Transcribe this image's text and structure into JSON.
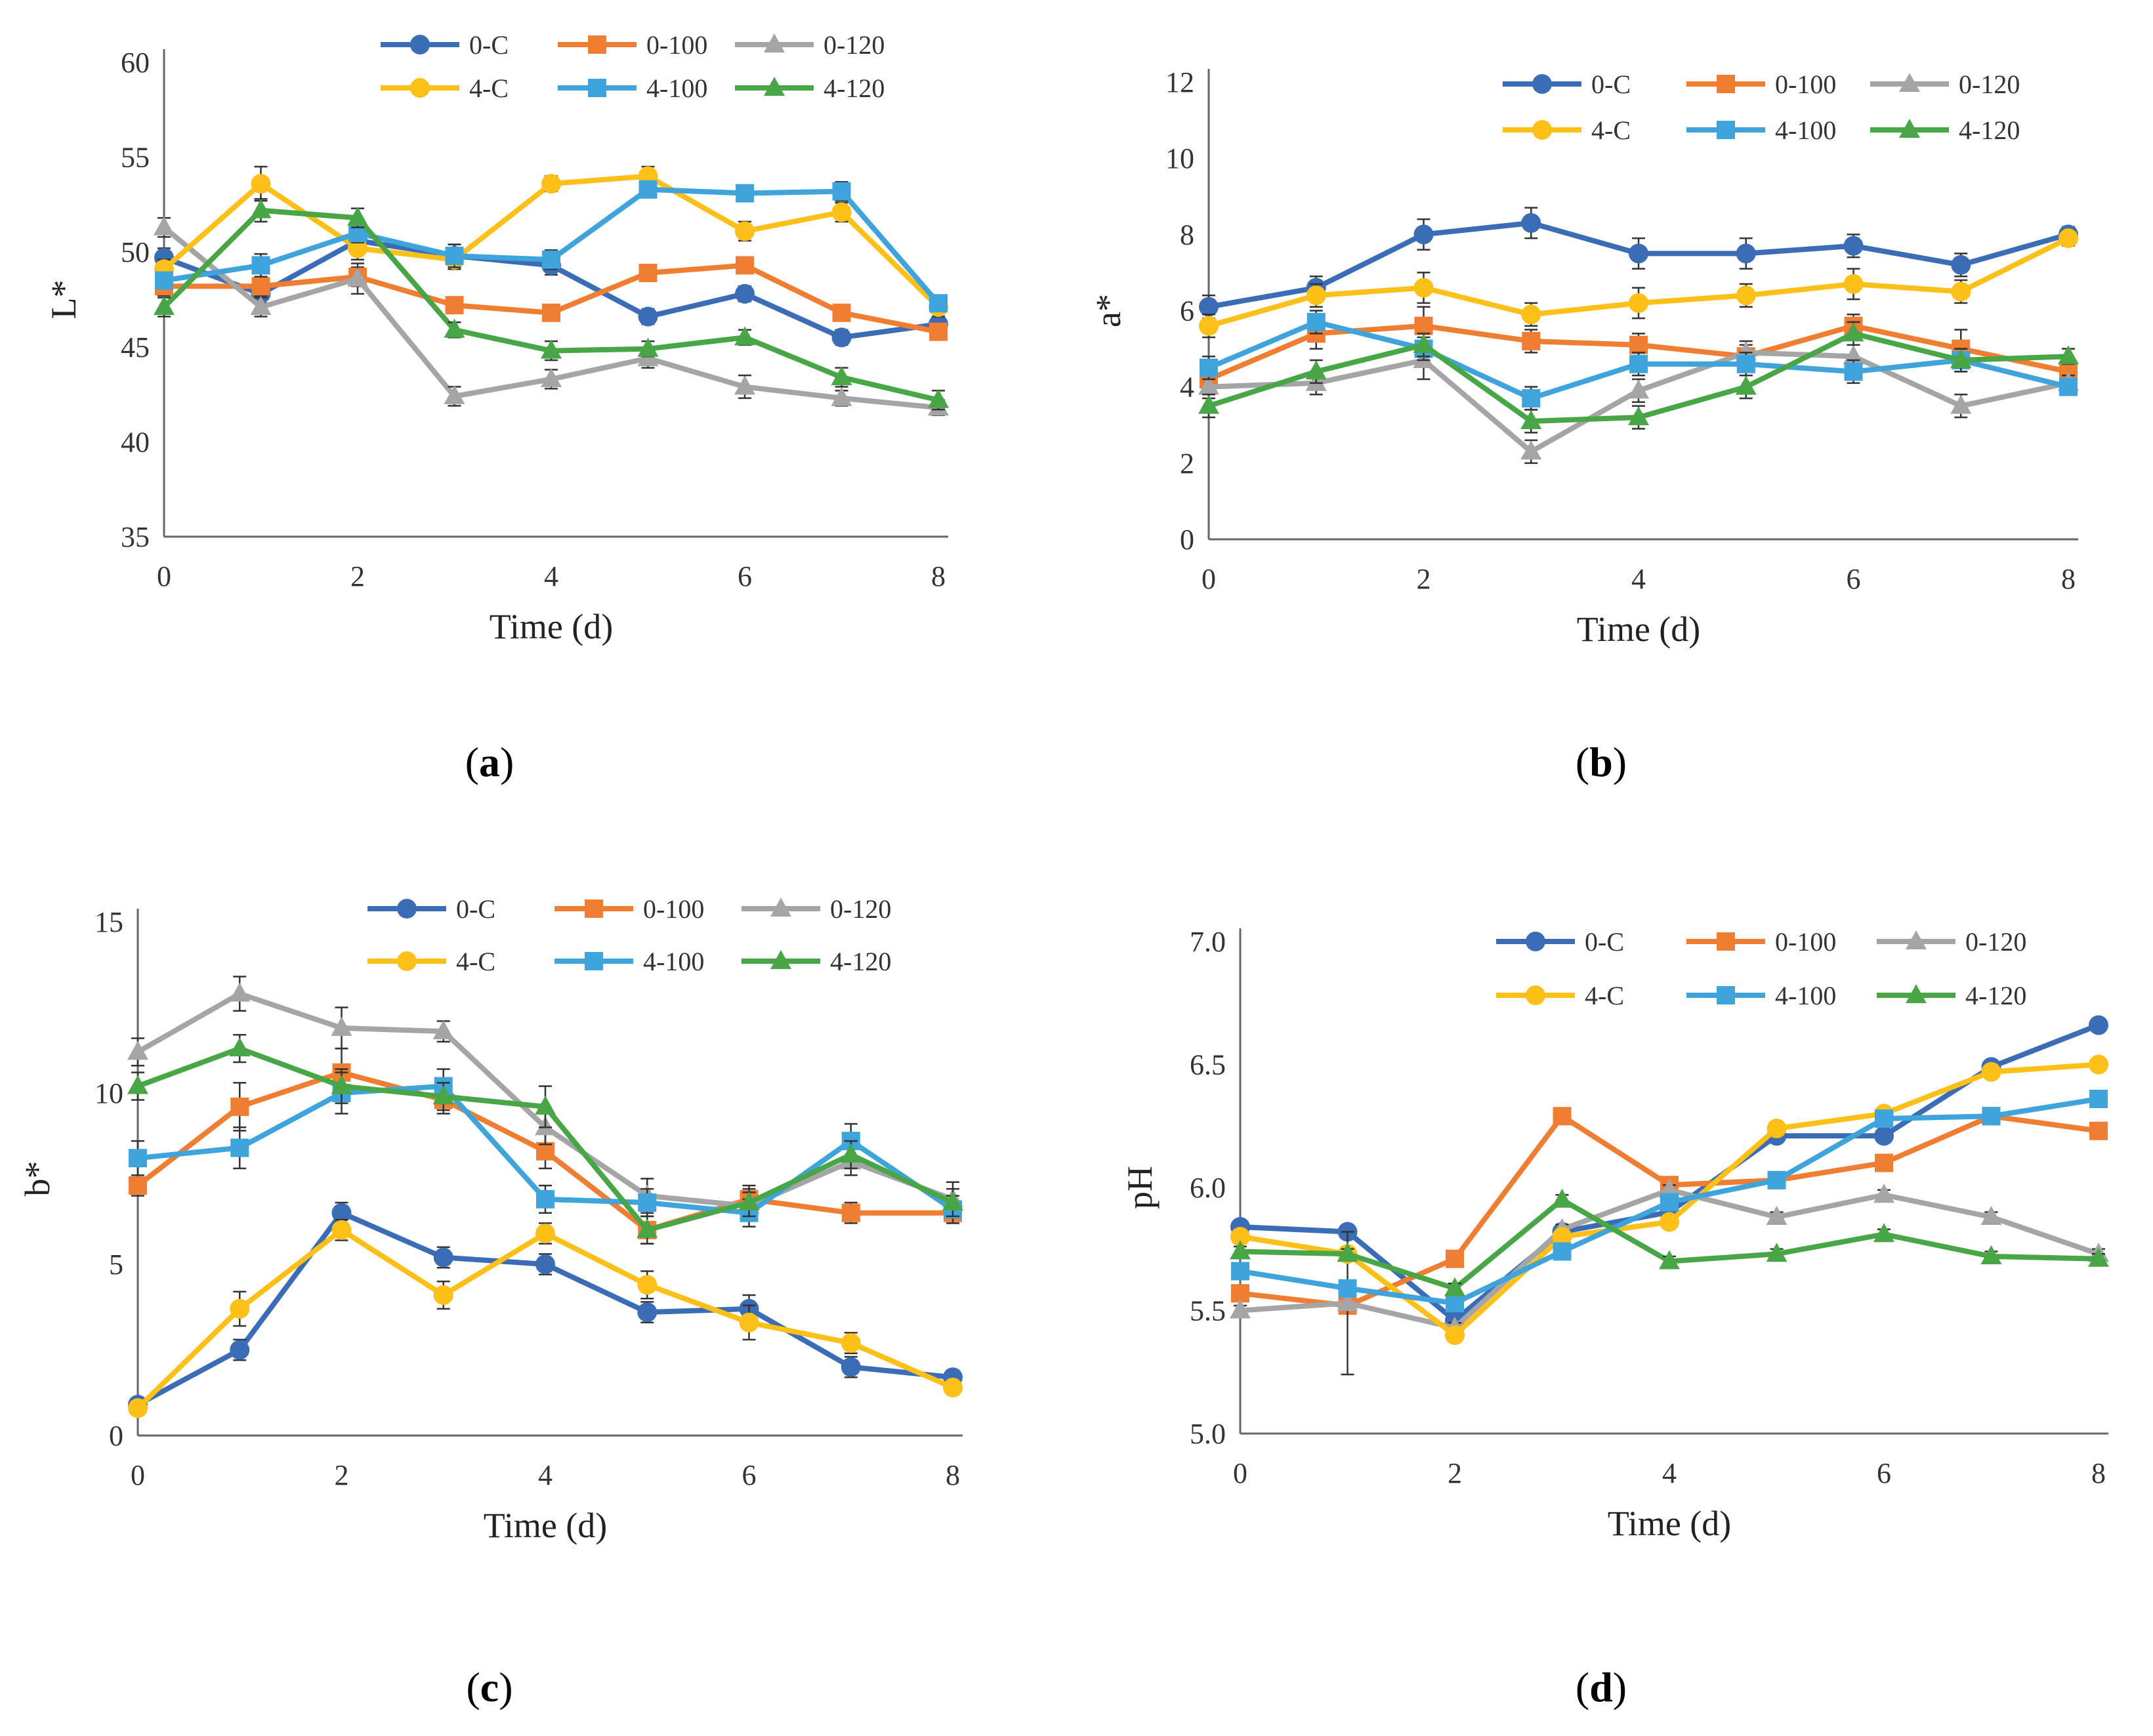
{
  "colors": {
    "0-C": "#3a6db5",
    "0-100": "#ef7d32",
    "0-120": "#a5a5a5",
    "4-C": "#fcc018",
    "4-100": "#3fa3dc",
    "4-120": "#49a646"
  },
  "x_ticks": [
    "0",
    "2",
    "4",
    "6",
    "8"
  ],
  "chart_data": [
    {
      "type": "line",
      "panel_label": "a",
      "xlabel": "Time (d)",
      "ylabel": "L*",
      "x": [
        0,
        1,
        2,
        3,
        4,
        5,
        6,
        7,
        8
      ],
      "ylim": [
        35,
        60
      ],
      "yticks": [
        "35",
        "40",
        "45",
        "50",
        "55",
        "60"
      ],
      "series": [
        {
          "name": "0-C",
          "marker": "circle",
          "values": [
            49.7,
            47.8,
            50.6,
            49.8,
            49.3,
            46.6,
            47.8,
            45.5,
            46.2
          ],
          "errors": [
            0.5,
            0.5,
            0.5,
            0.6,
            0.5,
            0.4,
            0.4,
            0.4,
            0.4
          ]
        },
        {
          "name": "0-100",
          "marker": "square",
          "values": [
            48.2,
            48.2,
            48.7,
            47.2,
            46.8,
            48.9,
            49.3,
            46.8,
            45.8
          ],
          "errors": [
            0.5,
            0.5,
            0.5,
            0.4,
            0.4,
            0.4,
            0.4,
            0.4,
            0.4
          ]
        },
        {
          "name": "0-120",
          "marker": "triangle",
          "values": [
            51.3,
            47.1,
            48.6,
            42.4,
            43.3,
            44.4,
            42.9,
            42.3,
            41.8
          ],
          "errors": [
            0.5,
            0.5,
            0.8,
            0.5,
            0.5,
            0.5,
            0.6,
            0.4,
            0.4
          ]
        },
        {
          "name": "4-C",
          "marker": "circle",
          "values": [
            49.1,
            53.6,
            50.2,
            49.6,
            53.6,
            54.0,
            51.1,
            52.1,
            47.1
          ],
          "errors": [
            0.5,
            0.9,
            0.6,
            0.5,
            0.4,
            0.5,
            0.5,
            0.5,
            0.5
          ]
        },
        {
          "name": "4-100",
          "marker": "square",
          "values": [
            48.5,
            49.3,
            51.0,
            49.8,
            49.6,
            53.3,
            53.1,
            53.2,
            47.3
          ],
          "errors": [
            0.4,
            0.6,
            0.5,
            0.6,
            0.5,
            0.4,
            0.4,
            0.5,
            0.4
          ]
        },
        {
          "name": "4-120",
          "marker": "triangle",
          "values": [
            47.1,
            52.2,
            51.8,
            45.9,
            44.8,
            44.9,
            45.5,
            43.4,
            42.2
          ],
          "errors": [
            0.5,
            0.6,
            0.5,
            0.4,
            0.5,
            0.4,
            0.4,
            0.5,
            0.5
          ]
        }
      ]
    },
    {
      "type": "line",
      "panel_label": "b",
      "xlabel": "Time (d)",
      "ylabel": "a*",
      "x": [
        0,
        1,
        2,
        3,
        4,
        5,
        6,
        7,
        8
      ],
      "ylim": [
        0,
        12
      ],
      "yticks": [
        "0",
        "2",
        "4",
        "6",
        "8",
        "10",
        "12"
      ],
      "series": [
        {
          "name": "0-C",
          "marker": "circle",
          "values": [
            6.1,
            6.6,
            8.0,
            8.3,
            7.5,
            7.5,
            7.7,
            7.2,
            8.0
          ],
          "errors": [
            0.3,
            0.3,
            0.4,
            0.4,
            0.4,
            0.4,
            0.3,
            0.3,
            0.2
          ]
        },
        {
          "name": "0-100",
          "marker": "square",
          "values": [
            4.2,
            5.4,
            5.6,
            5.2,
            5.1,
            4.8,
            5.6,
            5.0,
            4.4
          ],
          "errors": [
            0.3,
            0.4,
            0.5,
            0.3,
            0.3,
            0.3,
            0.3,
            0.5,
            0.3
          ]
        },
        {
          "name": "0-120",
          "marker": "triangle",
          "values": [
            4.0,
            4.1,
            4.7,
            2.3,
            3.9,
            4.9,
            4.8,
            3.5,
            4.1
          ],
          "errors": [
            0.3,
            0.3,
            0.5,
            0.3,
            0.3,
            0.3,
            0.3,
            0.3,
            0.2
          ]
        },
        {
          "name": "4-C",
          "marker": "circle",
          "values": [
            5.6,
            6.4,
            6.6,
            5.9,
            6.2,
            6.4,
            6.7,
            6.5,
            7.9
          ],
          "errors": [
            0.3,
            0.3,
            0.4,
            0.3,
            0.4,
            0.3,
            0.4,
            0.3,
            0.2
          ]
        },
        {
          "name": "4-100",
          "marker": "square",
          "values": [
            4.5,
            5.7,
            5.0,
            3.7,
            4.6,
            4.6,
            4.4,
            4.7,
            4.0
          ],
          "errors": [
            0.3,
            0.3,
            0.3,
            0.3,
            0.3,
            0.3,
            0.3,
            0.3,
            0.2
          ]
        },
        {
          "name": "4-120",
          "marker": "triangle",
          "values": [
            3.5,
            4.4,
            5.1,
            3.1,
            3.2,
            4.0,
            5.4,
            4.7,
            4.8
          ],
          "errors": [
            0.3,
            0.3,
            0.3,
            0.3,
            0.3,
            0.3,
            0.3,
            0.3,
            0.2
          ]
        }
      ]
    },
    {
      "type": "line",
      "panel_label": "c",
      "xlabel": "Time (d)",
      "ylabel": "b*",
      "x": [
        0,
        1,
        2,
        3,
        4,
        5,
        6,
        7,
        8
      ],
      "ylim": [
        0,
        15
      ],
      "yticks": [
        "0",
        "5",
        "10",
        "15"
      ],
      "series": [
        {
          "name": "0-C",
          "marker": "circle",
          "values": [
            0.9,
            2.5,
            6.5,
            5.2,
            5.0,
            3.6,
            3.7,
            2.0,
            1.7
          ],
          "errors": [
            0.2,
            0.3,
            0.3,
            0.3,
            0.3,
            0.3,
            0.4,
            0.3,
            0.2
          ]
        },
        {
          "name": "0-100",
          "marker": "square",
          "values": [
            7.3,
            9.6,
            10.6,
            9.8,
            8.3,
            6.0,
            6.9,
            6.5,
            6.5
          ],
          "errors": [
            0.3,
            0.7,
            0.7,
            0.4,
            0.5,
            0.4,
            0.4,
            0.3,
            0.3
          ]
        },
        {
          "name": "0-120",
          "marker": "triangle",
          "values": [
            11.2,
            12.9,
            11.9,
            11.8,
            9.0,
            7.0,
            6.7,
            8.0,
            6.9
          ],
          "errors": [
            0.4,
            0.5,
            0.6,
            0.3,
            0.5,
            0.5,
            0.4,
            0.4,
            0.5
          ]
        },
        {
          "name": "4-C",
          "marker": "circle",
          "values": [
            0.8,
            3.7,
            6.0,
            4.1,
            5.9,
            4.4,
            3.3,
            2.7,
            1.4
          ],
          "errors": [
            0.2,
            0.5,
            0.3,
            0.4,
            0.3,
            0.4,
            0.5,
            0.3,
            0.2
          ]
        },
        {
          "name": "4-100",
          "marker": "square",
          "values": [
            8.1,
            8.4,
            10.0,
            10.2,
            6.9,
            6.8,
            6.5,
            8.6,
            6.6
          ],
          "errors": [
            0.5,
            0.6,
            0.6,
            0.5,
            0.4,
            0.4,
            0.4,
            0.5,
            0.4
          ]
        },
        {
          "name": "4-120",
          "marker": "triangle",
          "values": [
            10.2,
            11.3,
            10.2,
            9.9,
            9.6,
            6.0,
            6.8,
            8.2,
            6.8
          ],
          "errors": [
            0.4,
            0.4,
            0.5,
            0.4,
            0.6,
            0.4,
            0.4,
            0.4,
            0.4
          ]
        }
      ]
    },
    {
      "type": "line",
      "panel_label": "d",
      "xlabel": "Time (d)",
      "ylabel": "pH",
      "x": [
        0,
        1,
        2,
        3,
        4,
        5,
        6,
        7,
        8
      ],
      "ylim": [
        5.0,
        7.0
      ],
      "yticks": [
        "5.0",
        "5.5",
        "6.0",
        "6.5",
        "7.0"
      ],
      "series": [
        {
          "name": "0-C",
          "marker": "circle",
          "values": [
            5.84,
            5.82,
            5.46,
            5.82,
            5.9,
            6.21,
            6.21,
            6.49,
            6.66
          ],
          "errors": [
            0.02,
            0.02,
            0.02,
            0.02,
            0.02,
            0.02,
            0.02,
            0.02,
            0.02
          ]
        },
        {
          "name": "0-100",
          "marker": "square",
          "values": [
            5.57,
            5.52,
            5.71,
            6.29,
            6.01,
            6.03,
            6.1,
            6.29,
            6.23
          ],
          "errors": [
            0.02,
            0.02,
            0.02,
            0.02,
            0.02,
            0.02,
            0.02,
            0.02,
            0.02
          ]
        },
        {
          "name": "0-120",
          "marker": "triangle",
          "values": [
            5.5,
            5.53,
            5.43,
            5.83,
            5.99,
            5.88,
            5.97,
            5.88,
            5.73
          ],
          "errors": [
            0.02,
            0.29,
            0.02,
            0.02,
            0.02,
            0.02,
            0.02,
            0.02,
            0.02
          ]
        },
        {
          "name": "4-C",
          "marker": "circle",
          "values": [
            5.8,
            5.73,
            5.4,
            5.8,
            5.86,
            6.24,
            6.3,
            6.47,
            6.5
          ],
          "errors": [
            0.02,
            0.02,
            0.02,
            0.02,
            0.02,
            0.02,
            0.02,
            0.02,
            0.02
          ]
        },
        {
          "name": "4-100",
          "marker": "square",
          "values": [
            5.66,
            5.59,
            5.53,
            5.74,
            5.94,
            6.03,
            6.28,
            6.29,
            6.36
          ],
          "errors": [
            0.02,
            0.02,
            0.02,
            0.02,
            0.02,
            0.02,
            0.02,
            0.02,
            0.02
          ]
        },
        {
          "name": "4-120",
          "marker": "triangle",
          "values": [
            5.74,
            5.73,
            5.59,
            5.95,
            5.7,
            5.73,
            5.81,
            5.72,
            5.71
          ],
          "errors": [
            0.02,
            0.02,
            0.02,
            0.02,
            0.02,
            0.02,
            0.02,
            0.02,
            0.02
          ]
        }
      ]
    }
  ],
  "captions": [
    "(a)",
    "(b)",
    "(c)",
    "(d)"
  ]
}
